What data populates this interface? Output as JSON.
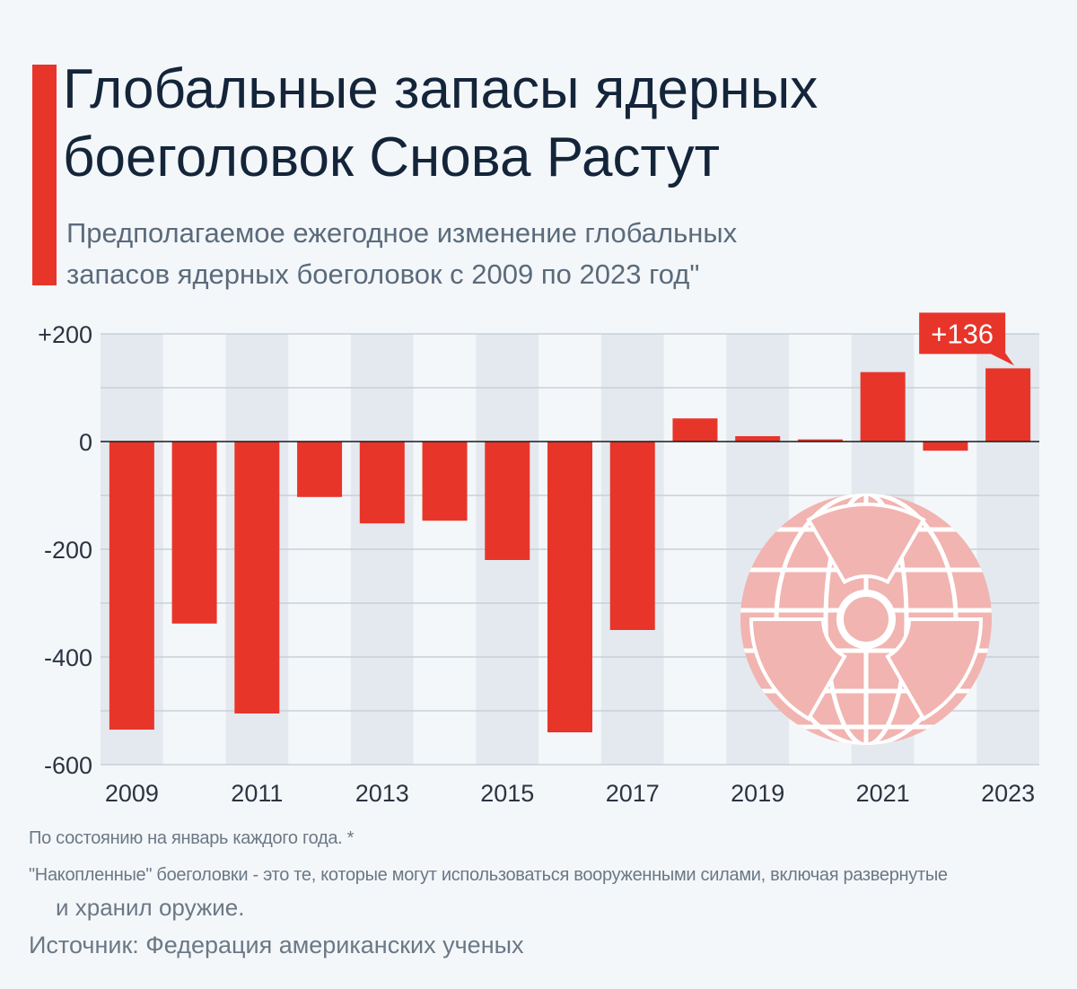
{
  "header": {
    "title_line1": "Глобальные запасы ядерных",
    "title_line2": "боеголовок Снова Растут",
    "subtitle_line1": "Предполагаемое ежегодное изменение глобальных",
    "subtitle_line2": "запасов ядерных боеголовок с 2009 по 2023 год\""
  },
  "colors": {
    "accent": "#e8352a",
    "bar": "#e8352a",
    "stripe": "#e3e9ef",
    "grid": "#c8d0d8",
    "icon": "#f1b4b0"
  },
  "chart_data": {
    "type": "bar",
    "categories": [
      "2009",
      "2010",
      "2011",
      "2012",
      "2013",
      "2014",
      "2015",
      "2016",
      "2017",
      "2018",
      "2019",
      "2020",
      "2021",
      "2022",
      "2023"
    ],
    "values": [
      -535,
      -338,
      -505,
      -103,
      -152,
      -147,
      -220,
      -540,
      -350,
      43,
      10,
      4,
      129,
      -17,
      136
    ],
    "x_tick_labels": [
      "2009",
      "",
      "2011",
      "",
      "2013",
      "",
      "2015",
      "",
      "2017",
      "",
      "2019",
      "",
      "2021",
      "",
      "2023"
    ],
    "y_ticks": [
      200,
      0,
      -200,
      -400,
      -600
    ],
    "y_tick_labels": [
      "+200",
      "0",
      "-200",
      "-400",
      "-600"
    ],
    "ylim": [
      -600,
      200
    ],
    "grid": true,
    "callout": {
      "category": "2023",
      "label": "+136"
    },
    "icon": "globe-radiation-icon"
  },
  "footer": {
    "note1": "По состоянию на январь каждого года. *",
    "note2": "\"Накопленные\" боеголовки - это те, которые могут использоваться вооруженными силами, включая развернутые",
    "note3": "и хранил оружие.",
    "source": "Источник: Федерация американских ученых"
  }
}
